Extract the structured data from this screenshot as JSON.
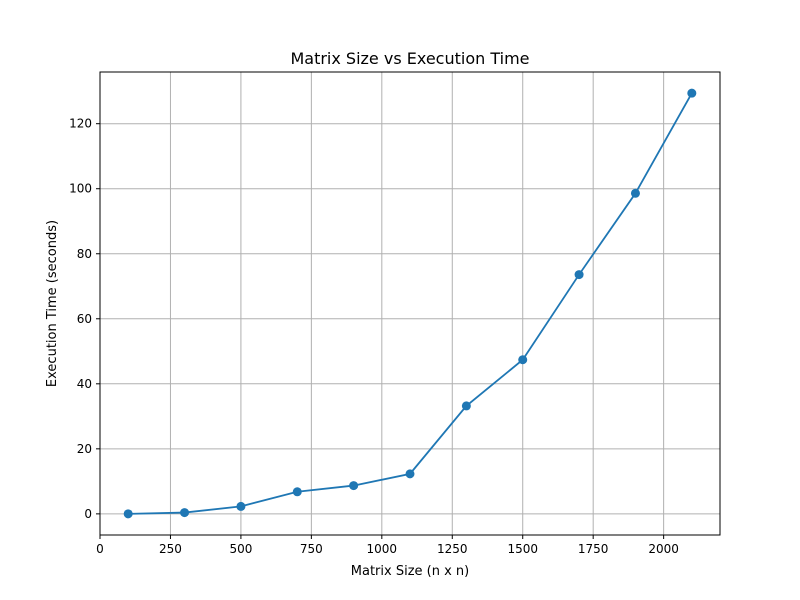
{
  "chart_data": {
    "type": "line",
    "title": "Matrix Size vs Execution Time",
    "xlabel": "Matrix Size (n x n)",
    "ylabel": "Execution Time (seconds)",
    "xlim": [
      0,
      2200
    ],
    "ylim": [
      -6.5,
      135.9
    ],
    "xticks": [
      0,
      250,
      500,
      750,
      1000,
      1250,
      1500,
      1750,
      2000
    ],
    "yticks": [
      0,
      20,
      40,
      60,
      80,
      100,
      120
    ],
    "grid": true,
    "marker": "circle",
    "series": [
      {
        "color": "#1f77b4",
        "x": [
          100,
          300,
          500,
          700,
          900,
          1100,
          1300,
          1500,
          1700,
          1900,
          2100
        ],
        "y": [
          0.0,
          0.4,
          2.3,
          6.8,
          8.7,
          12.3,
          33.2,
          47.4,
          73.6,
          98.6,
          129.4
        ]
      }
    ]
  }
}
